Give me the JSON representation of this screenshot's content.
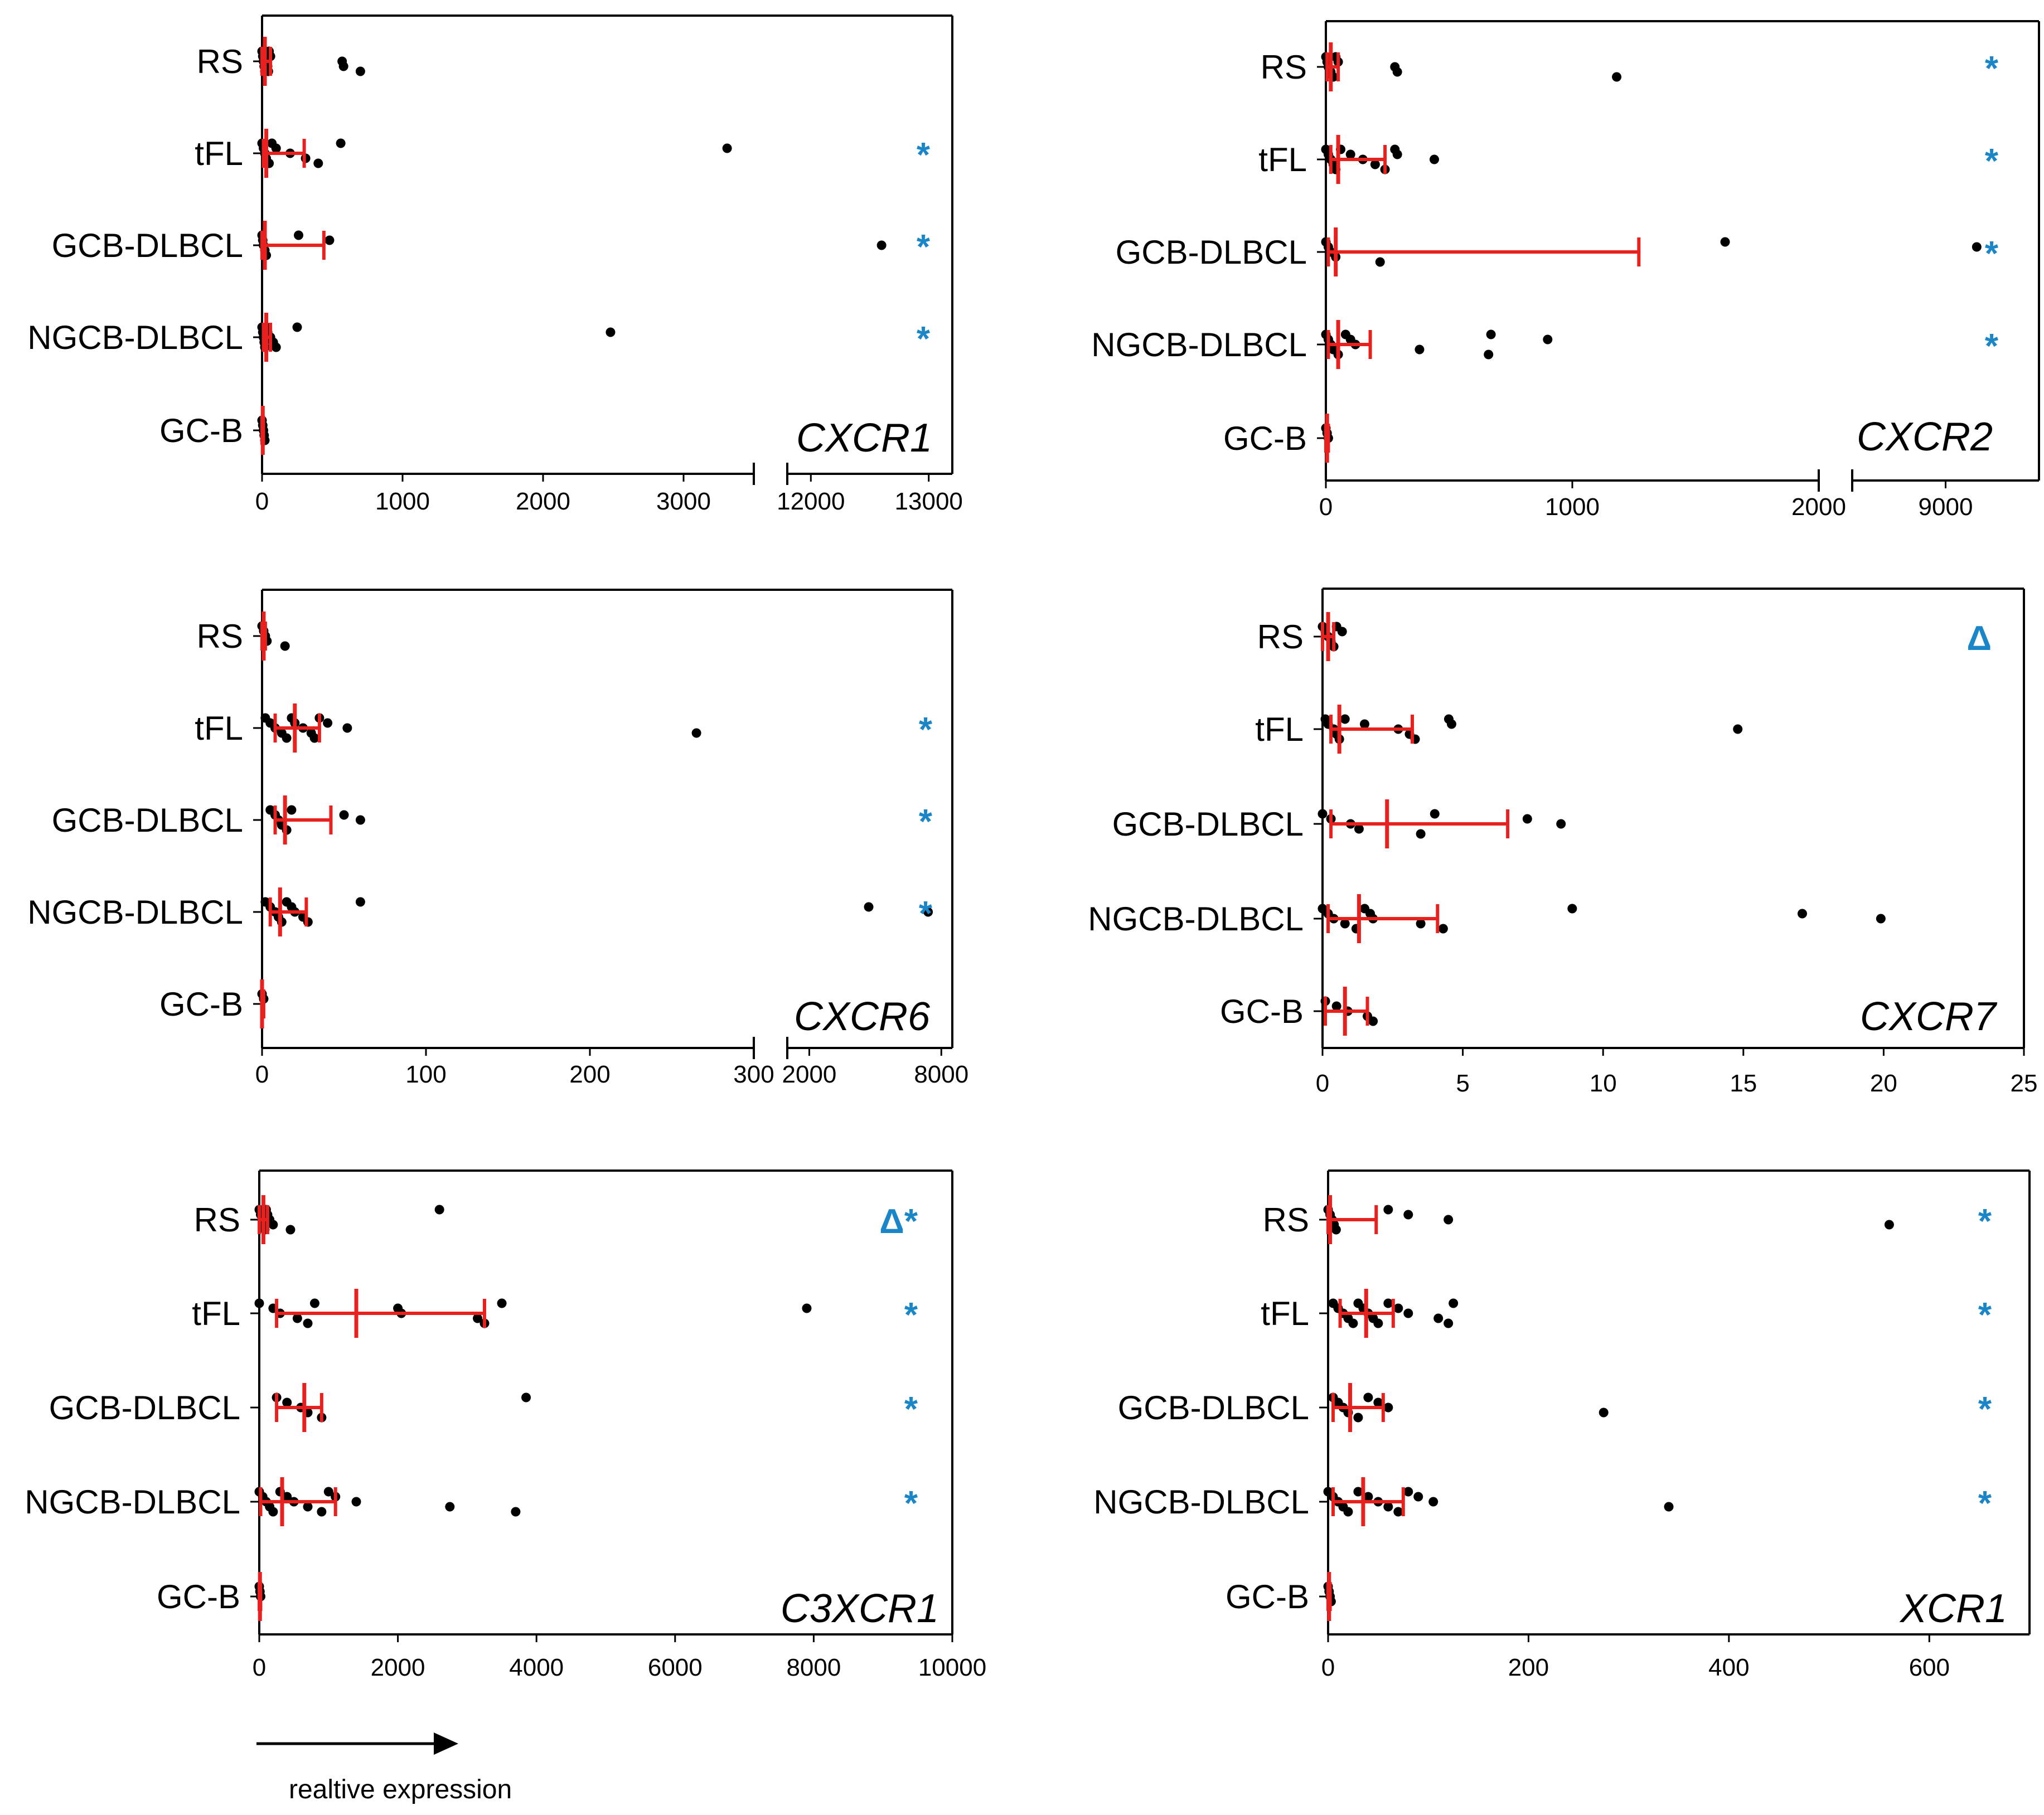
{
  "x_caption": "realtive expression",
  "colors": {
    "point": "#000000",
    "error": "#e8211f",
    "significance": "#1a86c7"
  },
  "chart_data": [
    {
      "type": "scatter",
      "title": "CXCR1",
      "categories": [
        "RS",
        "tFL",
        "GCB-DLBCL",
        "NGCB-DLBCL",
        "GC-B"
      ],
      "xlabel": "realtive expression",
      "broken_axis": true,
      "x_segments": [
        {
          "range": [
            0,
            3500
          ],
          "ticks": [
            0,
            1000,
            2000,
            3000
          ]
        },
        {
          "range": [
            11800,
            13200
          ],
          "ticks": [
            12000,
            13000
          ]
        }
      ],
      "tick_labels": [
        "0",
        "1000",
        "2000",
        "3000",
        "12000",
        "13000"
      ],
      "significance": [
        "",
        "*",
        "*",
        "*",
        ""
      ],
      "points": [
        [
          0,
          5,
          10,
          15,
          20,
          25,
          30,
          35,
          40,
          45,
          50,
          60,
          570,
          580,
          700
        ],
        [
          0,
          10,
          20,
          30,
          50,
          70,
          100,
          200,
          310,
          400,
          560,
          3310
        ],
        [
          0,
          5,
          10,
          20,
          30,
          260,
          480,
          12600
        ],
        [
          0,
          5,
          10,
          15,
          20,
          30,
          40,
          60,
          80,
          100,
          250,
          2480
        ],
        [
          0,
          5,
          10,
          15,
          20
        ]
      ],
      "median": [
        20,
        30,
        20,
        30,
        5
      ],
      "error": [
        [
          0,
          60
        ],
        [
          10,
          300
        ],
        [
          0,
          440
        ],
        [
          10,
          60
        ],
        [
          0,
          10
        ]
      ],
      "grid": false
    },
    {
      "type": "scatter",
      "title": "CXCR2",
      "categories": [
        "RS",
        "tFL",
        "GCB-DLBCL",
        "NGCB-DLBCL",
        "GC-B"
      ],
      "xlabel": "realtive expression",
      "broken_axis": true,
      "x_segments": [
        {
          "range": [
            0,
            2000
          ],
          "ticks": [
            0,
            1000,
            2000
          ]
        },
        {
          "range": [
            8700,
            9300
          ],
          "ticks": [
            9000
          ]
        }
      ],
      "tick_labels": [
        "0",
        "1000",
        "2000",
        "9000"
      ],
      "significance": [
        "*",
        "*",
        "*",
        "*",
        ""
      ],
      "points": [
        [
          0,
          5,
          10,
          20,
          30,
          40,
          50,
          280,
          290,
          1180
        ],
        [
          0,
          10,
          20,
          30,
          40,
          60,
          100,
          150,
          200,
          240,
          280,
          290,
          440
        ],
        [
          0,
          10,
          20,
          40,
          220,
          1620,
          9100
        ],
        [
          0,
          10,
          20,
          30,
          50,
          80,
          100,
          120,
          380,
          660,
          670,
          900
        ],
        [
          0,
          5,
          10
        ]
      ],
      "median": [
        20,
        50,
        40,
        50,
        5
      ],
      "error": [
        [
          5,
          50
        ],
        [
          20,
          240
        ],
        [
          10,
          1270
        ],
        [
          10,
          180
        ],
        [
          0,
          10
        ]
      ],
      "grid": false
    },
    {
      "type": "scatter",
      "title": "CXCR6",
      "categories": [
        "RS",
        "tFL",
        "GCB-DLBCL",
        "NGCB-DLBCL",
        "GC-B"
      ],
      "xlabel": "realtive expression",
      "broken_axis": true,
      "x_segments": [
        {
          "range": [
            0,
            300
          ],
          "ticks": [
            0,
            100,
            200,
            300
          ]
        },
        {
          "range": [
            1000,
            8500
          ],
          "ticks": [
            2000,
            8000
          ]
        }
      ],
      "tick_labels": [
        "0",
        "100",
        "200",
        "300",
        "2000",
        "8000"
      ],
      "significance": [
        "",
        "*",
        "*",
        "*",
        ""
      ],
      "points": [
        [
          0,
          1,
          2,
          3,
          14
        ],
        [
          2,
          5,
          8,
          12,
          15,
          18,
          20,
          25,
          30,
          32,
          35,
          40,
          52,
          265
        ],
        [
          5,
          8,
          10,
          12,
          15,
          18,
          50,
          60
        ],
        [
          2,
          5,
          8,
          10,
          12,
          15,
          18,
          20,
          25,
          28,
          60,
          4700,
          7400
        ],
        [
          0,
          1
        ]
      ],
      "median": [
        1,
        20,
        14,
        11,
        0
      ],
      "error": [
        [
          0,
          2
        ],
        [
          8,
          35
        ],
        [
          8,
          42
        ],
        [
          5,
          27
        ],
        [
          0,
          1
        ]
      ],
      "grid": false
    },
    {
      "type": "scatter",
      "title": "CXCR7",
      "categories": [
        "RS",
        "tFL",
        "GCB-DLBCL",
        "NGCB-DLBCL",
        "GC-B"
      ],
      "xlabel": "realtive expression",
      "broken_axis": false,
      "x_segments": [
        {
          "range": [
            0,
            25
          ],
          "ticks": [
            0,
            5,
            10,
            15,
            20,
            25
          ]
        }
      ],
      "tick_labels": [
        "0",
        "5",
        "10",
        "15",
        "20",
        "25"
      ],
      "significance": [
        "Δ",
        "",
        "",
        "",
        ""
      ],
      "points": [
        [
          0,
          0.1,
          0.2,
          0.3,
          0.4,
          0.5,
          0.7
        ],
        [
          0.1,
          0.2,
          0.4,
          0.5,
          0.6,
          0.8,
          1.5,
          2.7,
          3.1,
          3.3,
          4.5,
          4.6,
          14.8
        ],
        [
          0,
          0.3,
          1,
          1.3,
          3.5,
          4,
          7.3,
          8.5
        ],
        [
          0,
          0.2,
          0.4,
          0.8,
          1.2,
          1.5,
          1.7,
          1.8,
          3.5,
          4.3,
          8.9,
          17.1,
          19.9
        ],
        [
          0.1,
          0.5,
          0.9,
          1.6,
          1.8
        ]
      ],
      "median": [
        0.2,
        0.6,
        2.3,
        1.3,
        0.8
      ],
      "error": [
        [
          0,
          0.4
        ],
        [
          0.3,
          3.2
        ],
        [
          0.3,
          6.6
        ],
        [
          0.2,
          4.1
        ],
        [
          0.1,
          1.6
        ]
      ],
      "grid": false
    },
    {
      "type": "scatter",
      "title": "C3XCR1",
      "categories": [
        "RS",
        "tFL",
        "GCB-DLBCL",
        "NGCB-DLBCL",
        "GC-B"
      ],
      "xlabel": "realtive expression",
      "broken_axis": false,
      "x_segments": [
        {
          "range": [
            0,
            10000
          ],
          "ticks": [
            0,
            2000,
            4000,
            6000,
            8000,
            10000
          ]
        }
      ],
      "tick_labels": [
        "0",
        "2000",
        "4000",
        "6000",
        "8000",
        "10000"
      ],
      "significance": [
        "Δ*",
        "*",
        "*",
        "*",
        ""
      ],
      "points": [
        [
          0,
          20,
          40,
          60,
          80,
          100,
          120,
          150,
          200,
          450,
          2600
        ],
        [
          0,
          200,
          300,
          550,
          700,
          800,
          2000,
          2050,
          3150,
          3250,
          3500,
          7900
        ],
        [
          250,
          400,
          600,
          700,
          900,
          3850
        ],
        [
          0,
          50,
          100,
          150,
          200,
          300,
          400,
          500,
          700,
          900,
          1000,
          1100,
          1400,
          2750,
          3700
        ],
        [
          0,
          10,
          20
        ]
      ],
      "median": [
        60,
        1400,
        650,
        330,
        10
      ],
      "error": [
        [
          0,
          120
        ],
        [
          250,
          3250
        ],
        [
          250,
          900
        ],
        [
          20,
          1100
        ],
        [
          0,
          20
        ]
      ],
      "grid": false
    },
    {
      "type": "scatter",
      "title": "XCR1",
      "categories": [
        "RS",
        "tFL",
        "GCB-DLBCL",
        "NGCB-DLBCL",
        "GC-B"
      ],
      "xlabel": "realtive expression",
      "broken_axis": false,
      "x_segments": [
        {
          "range": [
            0,
            700
          ],
          "ticks": [
            0,
            200,
            400,
            600
          ]
        }
      ],
      "tick_labels": [
        "0",
        "200",
        "400",
        "600"
      ],
      "significance": [
        "*",
        "*",
        "*",
        "*",
        ""
      ],
      "points": [
        [
          0,
          2,
          4,
          6,
          8,
          60,
          80,
          120,
          560
        ],
        [
          5,
          10,
          15,
          20,
          25,
          30,
          35,
          40,
          45,
          50,
          60,
          70,
          80,
          110,
          120,
          125
        ],
        [
          5,
          10,
          15,
          20,
          30,
          40,
          50,
          60,
          275
        ],
        [
          0,
          5,
          10,
          15,
          20,
          30,
          40,
          50,
          60,
          70,
          80,
          90,
          105,
          340
        ],
        [
          0,
          1,
          2,
          3
        ]
      ],
      "median": [
        2,
        38,
        22,
        35,
        1
      ],
      "error": [
        [
          0,
          48
        ],
        [
          12,
          65
        ],
        [
          5,
          55
        ],
        [
          5,
          75
        ],
        [
          0,
          2
        ]
      ],
      "grid": false
    }
  ]
}
